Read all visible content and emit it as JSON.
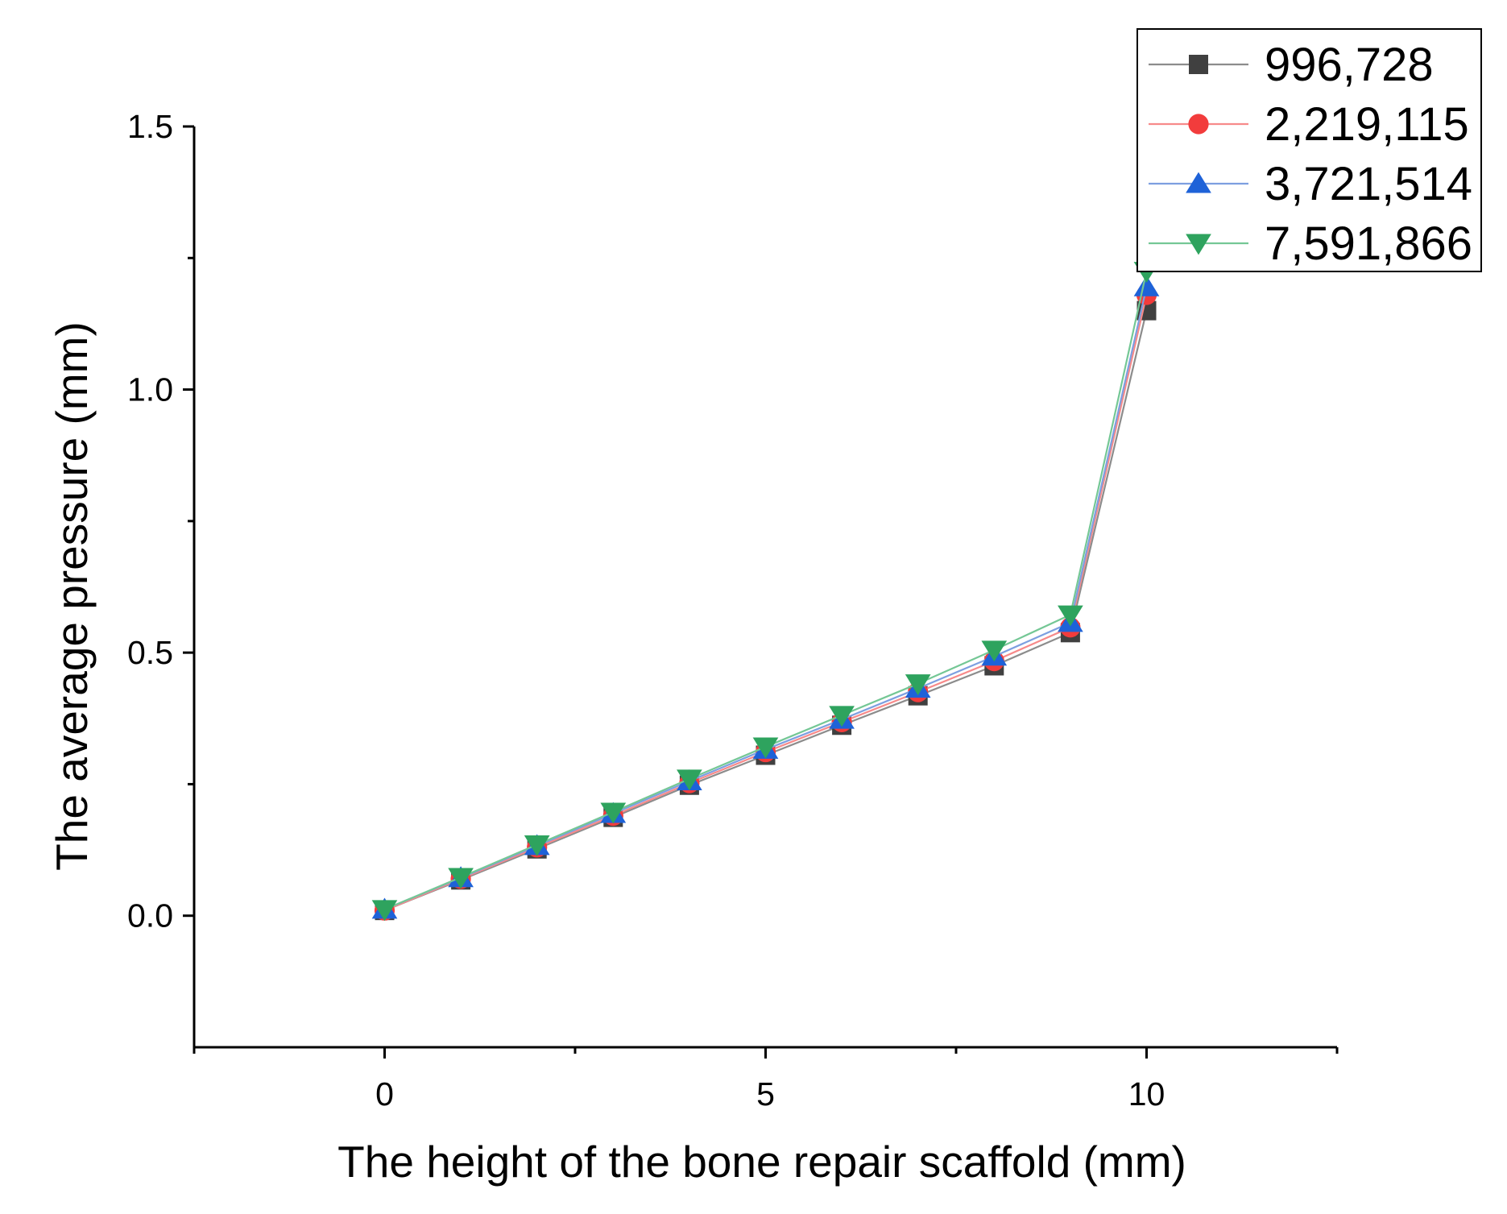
{
  "chart_data": {
    "type": "line",
    "title": "",
    "xlabel": "The height of the bone repair scaffold (mm)",
    "ylabel": "The average pressure (mm)",
    "xlim": [
      -2.5,
      12.5
    ],
    "ylim": [
      -0.25,
      1.5
    ],
    "xticks": [
      0,
      5,
      10
    ],
    "xtick_labels": [
      "0",
      "5",
      "10"
    ],
    "yticks": [
      0.0,
      0.5,
      1.0,
      1.5
    ],
    "ytick_labels": [
      "0.0",
      "0.5",
      "1.0",
      "1.5"
    ],
    "grid": false,
    "legend_position": "top-right",
    "x": [
      0,
      1,
      2,
      3,
      4,
      5,
      6,
      7,
      8,
      9,
      10
    ],
    "series": [
      {
        "name": "996,728",
        "marker": "square",
        "color": "#404040",
        "line_color": "#8c8c8c",
        "values": [
          0.01,
          0.068,
          0.127,
          0.187,
          0.248,
          0.305,
          0.362,
          0.418,
          0.475,
          0.538,
          1.15
        ]
      },
      {
        "name": "2,219,115",
        "marker": "circle",
        "color": "#f23c3c",
        "line_color": "#f78a8a",
        "values": [
          0.01,
          0.07,
          0.13,
          0.19,
          0.252,
          0.311,
          0.368,
          0.425,
          0.484,
          0.548,
          1.18
        ]
      },
      {
        "name": "3,721,514",
        "marker": "triangle-up",
        "color": "#1e62d8",
        "line_color": "#7d9fe0",
        "values": [
          0.012,
          0.072,
          0.133,
          0.194,
          0.256,
          0.316,
          0.373,
          0.432,
          0.493,
          0.557,
          1.195
        ]
      },
      {
        "name": "7,591,866",
        "marker": "triangle-down",
        "color": "#2ea35e",
        "line_color": "#74c795",
        "values": [
          0.012,
          0.073,
          0.135,
          0.197,
          0.26,
          0.321,
          0.381,
          0.441,
          0.505,
          0.572,
          1.225
        ]
      }
    ]
  }
}
